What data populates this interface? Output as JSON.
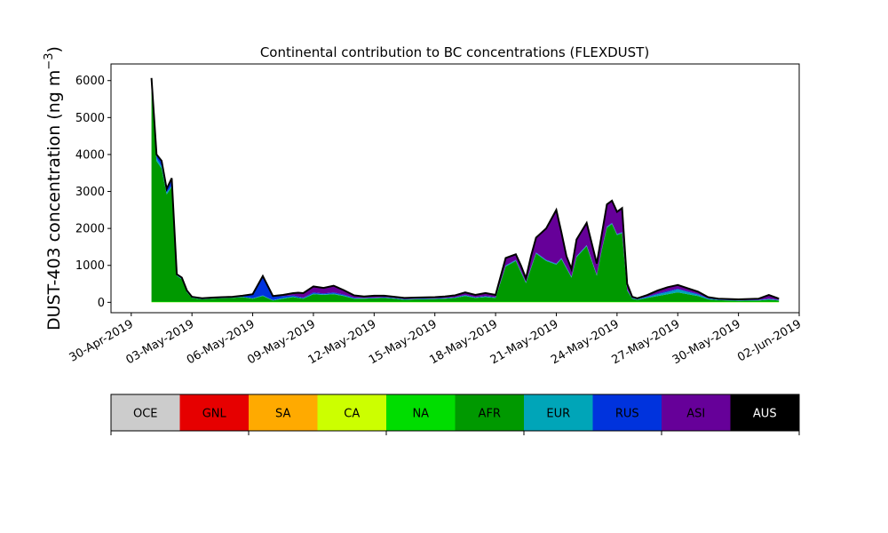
{
  "chart_data": {
    "type": "area",
    "stacked": true,
    "title": "Continental contribution to BC concentrations (FLEXDUST)",
    "ylabel_main": "DUST-403 concentration (ng m",
    "ylabel_sup": "−3",
    "ylabel_close": ")",
    "xlabel": "",
    "ylim": [
      -280,
      6450
    ],
    "xlim": [
      "2019-04-29",
      "2019-06-02"
    ],
    "yticks": [
      0,
      1000,
      2000,
      3000,
      4000,
      5000,
      6000
    ],
    "ytick_labels": [
      "0",
      "1000",
      "2000",
      "3000",
      "4000",
      "5000",
      "6000"
    ],
    "xticks": [
      "2019-04-30",
      "2019-05-03",
      "2019-05-06",
      "2019-05-09",
      "2019-05-12",
      "2019-05-15",
      "2019-05-18",
      "2019-05-21",
      "2019-05-24",
      "2019-05-27",
      "2019-05-30",
      "2019-06-02"
    ],
    "xtick_labels": [
      "30-Apr-2019",
      "03-May-2019",
      "06-May-2019",
      "09-May-2019",
      "12-May-2019",
      "15-May-2019",
      "18-May-2019",
      "21-May-2019",
      "24-May-2019",
      "27-May-2019",
      "30-May-2019",
      "02-Jun-2019"
    ],
    "x": [
      "2019-05-01",
      "2019-05-01T06",
      "2019-05-01T12",
      "2019-05-01T18",
      "2019-05-02",
      "2019-05-02T06",
      "2019-05-02T12",
      "2019-05-02T18",
      "2019-05-03",
      "2019-05-03T06",
      "2019-05-03T12",
      "2019-05-03T18",
      "2019-05-04",
      "2019-05-04T12",
      "2019-05-05",
      "2019-05-05T12",
      "2019-05-06",
      "2019-05-06T12",
      "2019-05-07",
      "2019-05-07T12",
      "2019-05-08",
      "2019-05-08T06",
      "2019-05-08T12",
      "2019-05-09",
      "2019-05-09T12",
      "2019-05-10",
      "2019-05-10T12",
      "2019-05-11",
      "2019-05-11T12",
      "2019-05-12",
      "2019-05-12T12",
      "2019-05-13",
      "2019-05-13T12",
      "2019-05-14",
      "2019-05-15",
      "2019-05-15T12",
      "2019-05-16",
      "2019-05-16T12",
      "2019-05-17",
      "2019-05-17T12",
      "2019-05-18",
      "2019-05-18T12",
      "2019-05-19",
      "2019-05-19T06",
      "2019-05-19T12",
      "2019-05-19T18",
      "2019-05-20",
      "2019-05-20T12",
      "2019-05-21",
      "2019-05-21T06",
      "2019-05-21T12",
      "2019-05-21T18",
      "2019-05-22",
      "2019-05-22T12",
      "2019-05-23",
      "2019-05-23T06",
      "2019-05-23T12",
      "2019-05-23T18",
      "2019-05-24",
      "2019-05-24T06",
      "2019-05-24T12",
      "2019-05-24T18",
      "2019-05-25",
      "2019-05-25T12",
      "2019-05-26",
      "2019-05-26T12",
      "2019-05-27",
      "2019-05-27T12",
      "2019-05-28",
      "2019-05-28T12",
      "2019-05-29",
      "2019-05-29T12",
      "2019-05-30",
      "2019-05-31",
      "2019-05-31T12",
      "2019-06-01"
    ],
    "series": [
      {
        "name": "CA",
        "color": "#ccff00",
        "values": [
          5,
          5,
          5,
          5,
          5,
          5,
          5,
          5,
          5,
          5,
          5,
          5,
          5,
          5,
          5,
          5,
          5,
          5,
          5,
          5,
          5,
          5,
          5,
          5,
          5,
          5,
          5,
          5,
          5,
          5,
          5,
          5,
          5,
          5,
          5,
          5,
          5,
          5,
          5,
          5,
          5,
          5,
          5,
          5,
          5,
          5,
          5,
          5,
          5,
          5,
          5,
          5,
          5,
          5,
          5,
          5,
          5,
          5,
          5,
          5,
          5,
          5,
          5,
          5,
          5,
          5,
          5,
          5,
          5,
          5,
          5,
          5,
          5,
          5,
          5,
          5
        ]
      },
      {
        "name": "NA",
        "color": "#00dd00",
        "values": [
          15,
          15,
          15,
          15,
          15,
          15,
          15,
          15,
          15,
          15,
          15,
          15,
          15,
          15,
          15,
          15,
          15,
          15,
          15,
          15,
          15,
          15,
          15,
          15,
          15,
          15,
          15,
          15,
          15,
          15,
          15,
          15,
          15,
          15,
          15,
          15,
          15,
          15,
          15,
          15,
          15,
          15,
          15,
          15,
          15,
          15,
          15,
          15,
          15,
          15,
          15,
          15,
          15,
          15,
          15,
          15,
          15,
          15,
          15,
          15,
          15,
          15,
          15,
          15,
          15,
          15,
          15,
          15,
          15,
          15,
          15,
          15,
          15,
          15,
          15,
          15
        ]
      },
      {
        "name": "AFR",
        "color": "#009900",
        "values": [
          5800,
          3800,
          3600,
          2900,
          3100,
          700,
          600,
          250,
          100,
          80,
          60,
          70,
          80,
          90,
          100,
          120,
          80,
          150,
          30,
          80,
          120,
          100,
          80,
          200,
          180,
          200,
          150,
          80,
          80,
          90,
          100,
          80,
          50,
          60,
          70,
          80,
          100,
          150,
          100,
          120,
          100,
          950,
          1100,
          800,
          500,
          900,
          1300,
          1100,
          1000,
          1150,
          900,
          650,
          1200,
          1500,
          700,
          1400,
          2000,
          2100,
          1800,
          1850,
          300,
          80,
          50,
          100,
          150,
          200,
          250,
          200,
          150,
          60,
          40,
          30,
          20,
          30,
          50,
          30
        ]
      },
      {
        "name": "EUR",
        "color": "#00a5b8",
        "values": [
          100,
          80,
          60,
          50,
          40,
          20,
          20,
          10,
          10,
          10,
          10,
          10,
          10,
          10,
          10,
          10,
          10,
          20,
          10,
          20,
          20,
          10,
          10,
          20,
          20,
          20,
          20,
          10,
          10,
          10,
          10,
          10,
          10,
          10,
          10,
          10,
          10,
          20,
          10,
          20,
          10,
          20,
          20,
          20,
          20,
          20,
          20,
          20,
          20,
          20,
          20,
          20,
          20,
          20,
          20,
          20,
          20,
          20,
          20,
          20,
          20,
          10,
          10,
          20,
          50,
          60,
          80,
          60,
          40,
          20,
          10,
          10,
          10,
          10,
          20,
          10
        ]
      },
      {
        "name": "RUS",
        "color": "#0033dd",
        "values": [
          150,
          100,
          150,
          100,
          200,
          20,
          20,
          20,
          10,
          10,
          10,
          10,
          10,
          10,
          10,
          20,
          100,
          500,
          100,
          50,
          30,
          30,
          20,
          30,
          20,
          30,
          20,
          20,
          10,
          10,
          10,
          10,
          10,
          10,
          10,
          10,
          10,
          10,
          10,
          10,
          10,
          10,
          10,
          10,
          10,
          10,
          10,
          10,
          10,
          10,
          10,
          10,
          10,
          10,
          10,
          10,
          10,
          10,
          10,
          10,
          10,
          10,
          10,
          20,
          20,
          30,
          20,
          20,
          20,
          10,
          10,
          10,
          10,
          10,
          10,
          10
        ]
      },
      {
        "name": "ASI",
        "color": "#660099",
        "values": [
          0,
          0,
          0,
          0,
          0,
          0,
          10,
          20,
          10,
          10,
          10,
          10,
          10,
          10,
          10,
          10,
          10,
          20,
          10,
          30,
          60,
          100,
          120,
          160,
          150,
          180,
          120,
          60,
          40,
          50,
          40,
          30,
          30,
          30,
          30,
          40,
          50,
          70,
          60,
          80,
          60,
          200,
          150,
          150,
          100,
          300,
          400,
          850,
          1450,
          700,
          300,
          200,
          450,
          600,
          300,
          400,
          600,
          600,
          600,
          650,
          150,
          30,
          20,
          40,
          80,
          100,
          100,
          80,
          60,
          30,
          20,
          20,
          20,
          30,
          100,
          30
        ]
      },
      {
        "name": "AUS",
        "color": "#000000",
        "values": [
          0,
          0,
          0,
          0,
          0,
          0,
          0,
          0,
          0,
          0,
          0,
          0,
          0,
          0,
          0,
          0,
          0,
          0,
          0,
          0,
          0,
          0,
          0,
          0,
          0,
          0,
          0,
          0,
          0,
          0,
          0,
          0,
          0,
          0,
          0,
          0,
          0,
          0,
          0,
          0,
          0,
          0,
          0,
          0,
          0,
          0,
          0,
          0,
          0,
          0,
          0,
          0,
          0,
          0,
          0,
          0,
          0,
          0,
          0,
          0,
          0,
          0,
          0,
          0,
          0,
          0,
          0,
          0,
          0,
          0,
          0,
          0,
          0,
          0,
          0,
          0
        ]
      }
    ],
    "total_line_color": "#000000",
    "legend": [
      {
        "name": "OCE",
        "color": "#cccccc",
        "text_color": "#000000"
      },
      {
        "name": "GNL",
        "color": "#e60000",
        "text_color": "#000000"
      },
      {
        "name": "SA",
        "color": "#ffaa00",
        "text_color": "#000000"
      },
      {
        "name": "CA",
        "color": "#ccff00",
        "text_color": "#000000"
      },
      {
        "name": "NA",
        "color": "#00dd00",
        "text_color": "#000000"
      },
      {
        "name": "AFR",
        "color": "#009900",
        "text_color": "#000000"
      },
      {
        "name": "EUR",
        "color": "#00a5b8",
        "text_color": "#000000"
      },
      {
        "name": "RUS",
        "color": "#0033dd",
        "text_color": "#000000"
      },
      {
        "name": "ASI",
        "color": "#660099",
        "text_color": "#000000"
      },
      {
        "name": "AUS",
        "color": "#000000",
        "text_color": "#ffffff"
      }
    ],
    "legend_placement": "below"
  }
}
